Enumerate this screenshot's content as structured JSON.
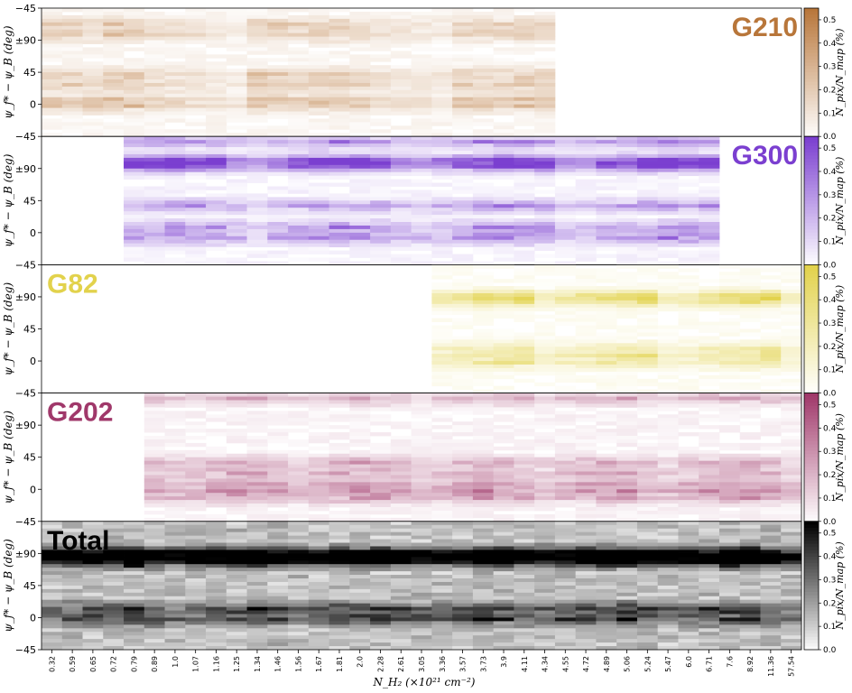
{
  "chart_data": {
    "type": "heatmap",
    "xlabel": "N_H₂ (×10²¹ cm⁻²)",
    "ylabel": "ψ_f* − ψ_B (deg)",
    "yticks": [
      "−45",
      "±90",
      "45",
      "0",
      "−45"
    ],
    "ylim": [
      -45,
      135
    ],
    "colorbar_label": "N_pix/N_map (%)",
    "colorbar_ticks": [
      "0.0",
      "0.1",
      "0.2",
      "0.3",
      "0.4",
      "0.5"
    ],
    "colorbar_range": [
      0,
      0.55
    ],
    "x_categories": [
      "0.32",
      "0.59",
      "0.65",
      "0.72",
      "0.79",
      "0.89",
      "1.0",
      "1.07",
      "1.16",
      "1.25",
      "1.34",
      "1.46",
      "1.56",
      "1.67",
      "1.81",
      "2.0",
      "2.28",
      "2.61",
      "3.05",
      "3.36",
      "3.57",
      "3.73",
      "3.9",
      "4.11",
      "4.34",
      "4.55",
      "4.72",
      "4.89",
      "5.06",
      "5.24",
      "5.47",
      "6.0",
      "6.71",
      "7.6",
      "8.92",
      "11.36",
      "57.54"
    ],
    "panels": [
      {
        "name": "G210",
        "color": "#b8763a",
        "title_position": "top-right",
        "x_range": [
          0.32,
          4.34
        ],
        "peak_values": [
          0.3,
          0.28,
          0.25,
          0.32,
          0.3,
          0.22,
          0.18,
          0.15,
          0.12,
          0.1
        ],
        "peak_angles_deg": [
          0,
          10,
          30,
          45,
          100,
          115
        ]
      },
      {
        "name": "G300",
        "color": "#7b3fd0",
        "title_position": "top-right",
        "x_range": [
          0.79,
          6.71
        ],
        "peak_values": [
          0.45,
          0.3,
          0.25,
          0.35,
          0.4,
          0.5,
          0.55,
          0.48
        ],
        "peak_angles_deg": [
          95,
          100,
          105,
          -5,
          10,
          40,
          130
        ]
      },
      {
        "name": "G82",
        "color": "#e2d24c",
        "title_position": "top-left",
        "x_range": [
          3.36,
          57.54
        ],
        "peak_values": [
          0.15,
          0.2,
          0.25,
          0.3,
          0.35,
          0.4
        ],
        "peak_angles_deg": [
          85,
          90,
          95,
          0,
          10,
          20
        ]
      },
      {
        "name": "G202",
        "color": "#a0386a",
        "title_position": "top-left",
        "x_range": [
          0.89,
          57.54
        ],
        "peak_values": [
          0.2,
          0.25,
          0.3,
          0.35,
          0.32,
          0.28
        ],
        "peak_angles_deg": [
          -10,
          0,
          10,
          25,
          40,
          130
        ]
      },
      {
        "name": "Total",
        "color": "#000000",
        "title_position": "top-left",
        "x_range": [
          0.32,
          57.54
        ],
        "peak_values": [
          0.35,
          0.4,
          0.45,
          0.5,
          0.55,
          0.45
        ],
        "peak_angles_deg": [
          80,
          85,
          90,
          95,
          0,
          15
        ]
      }
    ]
  }
}
